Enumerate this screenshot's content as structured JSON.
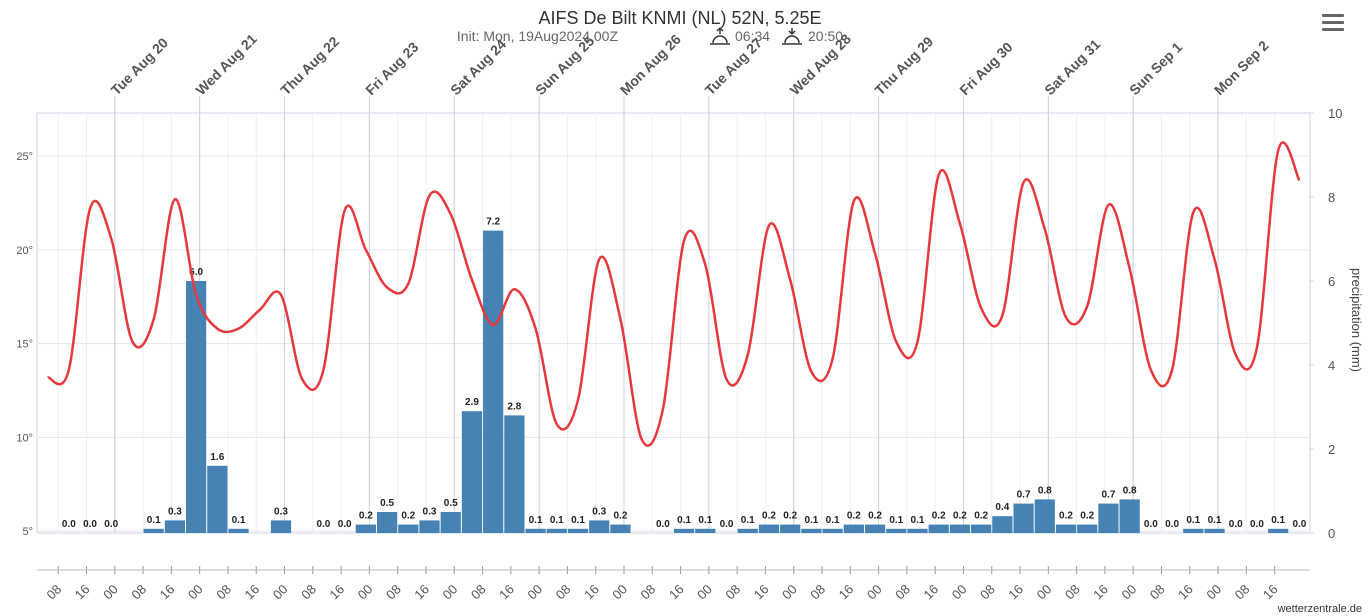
{
  "chart_data": {
    "type": "meteogram",
    "title": "AIFS De Bilt KNMI (NL) 52N, 5.25E",
    "subtitle": "Init: Mon, 19Aug2024 00Z",
    "sunrise": "06:34",
    "sunset": "20:50",
    "y2_label": "precipitation (mm)",
    "credit": "wetterzentrale.de",
    "xlim": [
      "2024-08-19T02:00",
      "2024-09-03T02:00"
    ],
    "ylim": [
      4.9,
      27.3
    ],
    "yticks": [
      {
        "value": 5,
        "label": "5°"
      },
      {
        "value": 10,
        "label": "10°"
      },
      {
        "value": 15,
        "label": "15°"
      },
      {
        "value": 20,
        "label": "20°"
      },
      {
        "value": 25,
        "label": "25°"
      }
    ],
    "y2lim": [
      0,
      10
    ],
    "y2ticks": [
      0,
      2,
      4,
      6,
      8,
      10
    ],
    "grid": true,
    "day_ticks": [
      {
        "value": "2024-08-20T00:00",
        "label": "Tue Aug 20"
      },
      {
        "value": "2024-08-21T00:00",
        "label": "Wed Aug 21"
      },
      {
        "value": "2024-08-22T00:00",
        "label": "Thu Aug 22"
      },
      {
        "value": "2024-08-23T00:00",
        "label": "Fri Aug 23"
      },
      {
        "value": "2024-08-24T00:00",
        "label": "Sat Aug 24"
      },
      {
        "value": "2024-08-25T00:00",
        "label": "Sun Aug 25"
      },
      {
        "value": "2024-08-26T00:00",
        "label": "Mon Aug 26"
      },
      {
        "value": "2024-08-27T00:00",
        "label": "Tue Aug 27"
      },
      {
        "value": "2024-08-28T00:00",
        "label": "Wed Aug 28"
      },
      {
        "value": "2024-08-29T00:00",
        "label": "Thu Aug 29"
      },
      {
        "value": "2024-08-30T00:00",
        "label": "Fri Aug 30"
      },
      {
        "value": "2024-08-31T00:00",
        "label": "Sat Aug 31"
      },
      {
        "value": "2024-09-01T00:00",
        "label": "Sun Sep 1"
      },
      {
        "value": "2024-09-02T00:00",
        "label": "Mon Sep 2"
      }
    ],
    "hour_ticks": [
      {
        "value": "2024-08-19T08:00",
        "label": "08"
      },
      {
        "value": "2024-08-19T16:00",
        "label": "16"
      },
      {
        "value": "2024-08-20T00:00",
        "label": "00"
      },
      {
        "value": "2024-08-20T08:00",
        "label": "08"
      },
      {
        "value": "2024-08-20T16:00",
        "label": "16"
      },
      {
        "value": "2024-08-21T00:00",
        "label": "00"
      },
      {
        "value": "2024-08-21T08:00",
        "label": "08"
      },
      {
        "value": "2024-08-21T16:00",
        "label": "16"
      },
      {
        "value": "2024-08-22T00:00",
        "label": "00"
      },
      {
        "value": "2024-08-22T08:00",
        "label": "08"
      },
      {
        "value": "2024-08-22T16:00",
        "label": "16"
      },
      {
        "value": "2024-08-23T00:00",
        "label": "00"
      },
      {
        "value": "2024-08-23T08:00",
        "label": "08"
      },
      {
        "value": "2024-08-23T16:00",
        "label": "16"
      },
      {
        "value": "2024-08-24T00:00",
        "label": "00"
      },
      {
        "value": "2024-08-24T08:00",
        "label": "08"
      },
      {
        "value": "2024-08-24T16:00",
        "label": "16"
      },
      {
        "value": "2024-08-25T00:00",
        "label": "00"
      },
      {
        "value": "2024-08-25T08:00",
        "label": "08"
      },
      {
        "value": "2024-08-25T16:00",
        "label": "16"
      },
      {
        "value": "2024-08-26T00:00",
        "label": "00"
      },
      {
        "value": "2024-08-26T08:00",
        "label": "08"
      },
      {
        "value": "2024-08-26T16:00",
        "label": "16"
      },
      {
        "value": "2024-08-27T00:00",
        "label": "00"
      },
      {
        "value": "2024-08-27T08:00",
        "label": "08"
      },
      {
        "value": "2024-08-27T16:00",
        "label": "16"
      },
      {
        "value": "2024-08-28T00:00",
        "label": "00"
      },
      {
        "value": "2024-08-28T08:00",
        "label": "08"
      },
      {
        "value": "2024-08-28T16:00",
        "label": "16"
      },
      {
        "value": "2024-08-29T00:00",
        "label": "00"
      },
      {
        "value": "2024-08-29T08:00",
        "label": "08"
      },
      {
        "value": "2024-08-29T16:00",
        "label": "16"
      },
      {
        "value": "2024-08-30T00:00",
        "label": "00"
      },
      {
        "value": "2024-08-30T08:00",
        "label": "08"
      },
      {
        "value": "2024-08-30T16:00",
        "label": "16"
      },
      {
        "value": "2024-08-31T00:00",
        "label": "00"
      },
      {
        "value": "2024-08-31T08:00",
        "label": "08"
      },
      {
        "value": "2024-08-31T16:00",
        "label": "16"
      },
      {
        "value": "2024-09-01T00:00",
        "label": "00"
      },
      {
        "value": "2024-09-01T08:00",
        "label": "08"
      },
      {
        "value": "2024-09-01T16:00",
        "label": "16"
      },
      {
        "value": "2024-09-02T00:00",
        "label": "00"
      },
      {
        "value": "2024-09-02T08:00",
        "label": "08"
      },
      {
        "value": "2024-09-02T16:00",
        "label": "16"
      }
    ],
    "x": [
      "2024-08-19T05:00",
      "2024-08-19T11:00",
      "2024-08-19T17:00",
      "2024-08-19T23:00",
      "2024-08-20T05:00",
      "2024-08-20T11:00",
      "2024-08-20T17:00",
      "2024-08-20T23:00",
      "2024-08-21T05:00",
      "2024-08-21T11:00",
      "2024-08-21T17:00",
      "2024-08-21T23:00",
      "2024-08-22T05:00",
      "2024-08-22T11:00",
      "2024-08-22T17:00",
      "2024-08-22T23:00",
      "2024-08-23T05:00",
      "2024-08-23T11:00",
      "2024-08-23T17:00",
      "2024-08-23T23:00",
      "2024-08-24T05:00",
      "2024-08-24T11:00",
      "2024-08-24T17:00",
      "2024-08-24T23:00",
      "2024-08-25T05:00",
      "2024-08-25T11:00",
      "2024-08-25T17:00",
      "2024-08-25T23:00",
      "2024-08-26T05:00",
      "2024-08-26T11:00",
      "2024-08-26T17:00",
      "2024-08-26T23:00",
      "2024-08-27T05:00",
      "2024-08-27T11:00",
      "2024-08-27T17:00",
      "2024-08-27T23:00",
      "2024-08-28T05:00",
      "2024-08-28T11:00",
      "2024-08-28T17:00",
      "2024-08-28T23:00",
      "2024-08-29T05:00",
      "2024-08-29T11:00",
      "2024-08-29T17:00",
      "2024-08-29T23:00",
      "2024-08-30T05:00",
      "2024-08-30T11:00",
      "2024-08-30T17:00",
      "2024-08-30T23:00",
      "2024-08-31T05:00",
      "2024-08-31T11:00",
      "2024-08-31T17:00",
      "2024-08-31T23:00",
      "2024-09-01T05:00",
      "2024-09-01T11:00",
      "2024-09-01T17:00",
      "2024-09-01T23:00",
      "2024-09-02T05:00",
      "2024-09-02T11:00",
      "2024-09-02T17:00",
      "2024-09-02T23:00"
    ],
    "series": [
      {
        "name": "temperature",
        "type": "line",
        "color": "#e8383d",
        "values": [
          13.2,
          13.6,
          22.2,
          20.6,
          15.1,
          16.3,
          22.7,
          17.6,
          15.8,
          15.8,
          16.8,
          17.6,
          13.1,
          13.6,
          22.1,
          20.0,
          18.0,
          18.2,
          22.9,
          21.9,
          18.4,
          16.0,
          17.9,
          15.8,
          10.7,
          12.0,
          19.5,
          16.3,
          9.9,
          11.5,
          20.5,
          19.2,
          13.1,
          14.4,
          21.3,
          18.4,
          13.5,
          14.2,
          22.6,
          19.8,
          15.1,
          15.1,
          24.0,
          21.4,
          16.9,
          16.5,
          23.6,
          21.1,
          16.4,
          17.0,
          22.4,
          19.0,
          13.6,
          13.6,
          22.0,
          19.5,
          14.4,
          14.8,
          25.3,
          23.7
        ]
      },
      {
        "name": "precipitation",
        "type": "bar",
        "axis": "y2",
        "color": "#4682b4",
        "values": [
          null,
          0.0,
          0.0,
          0.0,
          null,
          0.1,
          0.3,
          6.0,
          1.6,
          0.1,
          null,
          0.3,
          null,
          0.0,
          0.0,
          0.2,
          0.5,
          0.2,
          0.3,
          0.5,
          2.9,
          7.2,
          2.8,
          0.1,
          0.1,
          0.1,
          0.3,
          0.2,
          null,
          0.0,
          0.1,
          0.1,
          0.0,
          0.1,
          0.2,
          0.2,
          0.1,
          0.1,
          0.2,
          0.2,
          0.1,
          0.1,
          0.2,
          0.2,
          0.2,
          0.4,
          0.7,
          0.8,
          0.2,
          0.2,
          0.7,
          0.8,
          0.0,
          0.0,
          0.1,
          0.1,
          0.0,
          0.0,
          0.1,
          0.0
        ],
        "value_labels": [
          null,
          "0.0",
          "0.0",
          "0.0",
          null,
          "0.1",
          "0.3",
          "6.0",
          "1.6",
          "0.1",
          null,
          "0.3",
          null,
          "0.0",
          "0.0",
          "0.2",
          "0.5",
          "0.2",
          "0.3",
          "0.5",
          "2.9",
          "7.2",
          "2.8",
          "0.1",
          "0.1",
          "0.1",
          "0.3",
          "0.2",
          null,
          "0.0",
          "0.1",
          "0.1",
          "0.0",
          "0.1",
          "0.2",
          "0.2",
          "0.1",
          "0.1",
          "0.2",
          "0.2",
          "0.1",
          "0.1",
          "0.2",
          "0.2",
          "0.2",
          "0.4",
          "0.7",
          "0.8",
          "0.2",
          "0.2",
          "0.7",
          "0.8",
          "0.0",
          "0.0",
          "0.1",
          "0.1",
          "0.0",
          "0.0",
          "0.1",
          "0.0"
        ]
      }
    ]
  }
}
